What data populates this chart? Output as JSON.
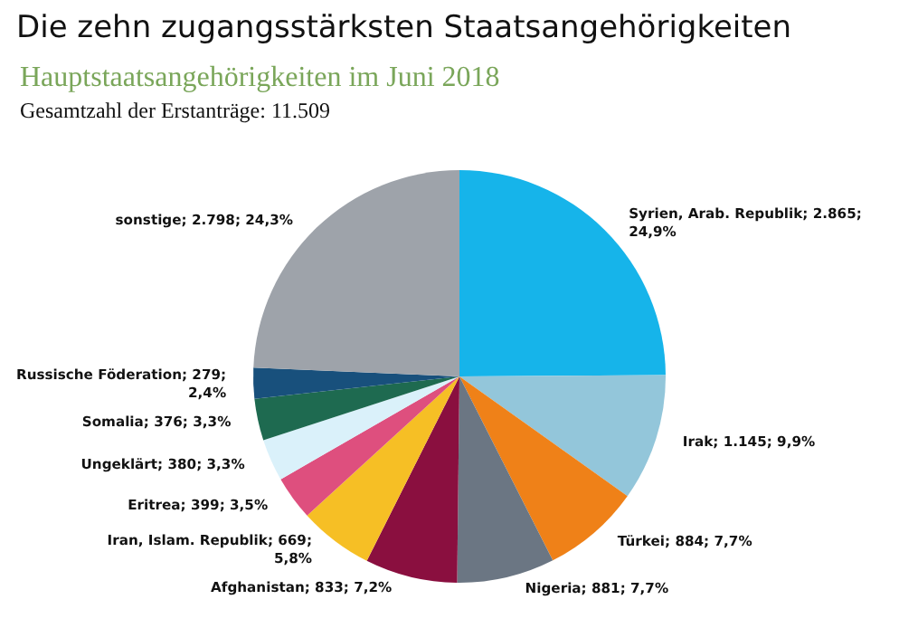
{
  "chart_data": {
    "type": "pie",
    "title": "Die zehn zugangsstärksten Staatsangehörigkeiten",
    "subtitle": "Hauptstaatsangehörigkeiten im Juni 2018",
    "annotations": [
      "Gesamtzahl der Erstanträge: 11.509"
    ],
    "categories": [
      "Syrien, Arab. Republik",
      "Irak",
      "Türkei",
      "Nigeria",
      "Afghanistan",
      "Iran, Islam. Republik",
      "Eritrea",
      "Ungeklärt",
      "Somalia",
      "Russische Föderation",
      "sonstige"
    ],
    "values": [
      2865,
      1145,
      884,
      881,
      833,
      669,
      399,
      380,
      376,
      279,
      2798
    ],
    "value_labels": [
      "2.865; 24,9%",
      "1.145; 9,9%",
      "884; 7,7%",
      "881; 7,7%",
      "833; 7,2%",
      "669; 5,8%",
      "399; 3,5%",
      "380; 3,3%",
      "376; 3,3%",
      "279; 2,4%",
      "2.798; 24,3%"
    ],
    "colors": [
      "#16b4ea",
      "#93c6da",
      "#ef8118",
      "#6b7683",
      "#8a0f3f",
      "#f6bf25",
      "#de4f7e",
      "#daf1fa",
      "#1e6a50",
      "#18507c",
      "#9ea3aa"
    ],
    "legend": false
  }
}
